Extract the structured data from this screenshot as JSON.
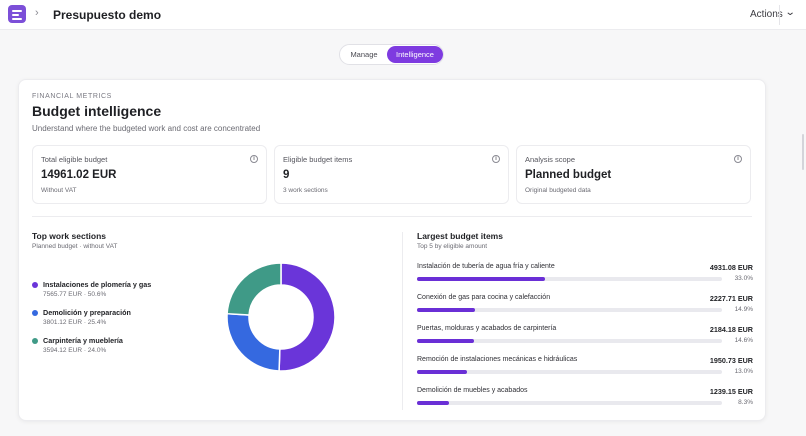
{
  "header": {
    "title": "Presupuesto demo",
    "actions_label": "Actions",
    "icons": {
      "logo": "app-logo-icon",
      "breadcrumb": "chevron-right-icon",
      "actions": "chevron-down-icon"
    }
  },
  "tabs": [
    {
      "label": "Manage",
      "active": false
    },
    {
      "label": "Intelligence",
      "active": true
    }
  ],
  "panel": {
    "eyebrow": "FINANCIAL METRICS",
    "title": "Budget intelligence",
    "subtitle": "Understand where the budgeted work and cost are concentrated"
  },
  "metrics": [
    {
      "label": "Total eligible budget",
      "value": "14961.02 EUR",
      "note": "Without VAT",
      "icon": "info-icon"
    },
    {
      "label": "Eligible budget items",
      "value": "9",
      "note": "3 work sections",
      "icon": "info-icon"
    },
    {
      "label": "Analysis scope",
      "value": "Planned budget",
      "note": "Original budgeted data",
      "icon": "info-icon"
    }
  ],
  "sections": {
    "title": "Top work sections",
    "subtitle": "Planned budget · without VAT",
    "items": [
      {
        "name": "Instalaciones de plomería y gas",
        "detail": "7565.77 EUR · 50.6%",
        "value": 7565.77,
        "share": 50.6,
        "color": "#6a35d9"
      },
      {
        "name": "Demolición y preparación",
        "detail": "3801.12 EUR · 25.4%",
        "value": 3801.12,
        "share": 25.4,
        "color": "#3569e0"
      },
      {
        "name": "Carpintería y mueblería",
        "detail": "3594.12 EUR · 24.0%",
        "value": 3594.12,
        "share": 24.0,
        "color": "#3f9a87"
      }
    ]
  },
  "largest": {
    "title": "Largest budget items",
    "subtitle": "Top 5 by eligible amount",
    "items": [
      {
        "name": "Instalación de tubería de agua fría y caliente",
        "amount": "4931.08 EUR",
        "pct": "33.0%",
        "share": 0.33
      },
      {
        "name": "Conexión de gas para cocina y calefacción",
        "amount": "2227.71 EUR",
        "pct": "14.9%",
        "share": 0.149
      },
      {
        "name": "Puertas, molduras y acabados de carpintería",
        "amount": "2184.18 EUR",
        "pct": "14.6%",
        "share": 0.146
      },
      {
        "name": "Remoción de instalaciones mecánicas e hidráulicas",
        "amount": "1950.73 EUR",
        "pct": "13.0%",
        "share": 0.13
      },
      {
        "name": "Demolición de muebles y acabados",
        "amount": "1239.15 EUR",
        "pct": "8.3%",
        "share": 0.083
      }
    ]
  },
  "chart_data": {
    "type": "pie",
    "categories": [
      "Instalaciones de plomería y gas",
      "Demolición y preparación",
      "Carpintería y mueblería"
    ],
    "values": [
      7565.77,
      3801.12,
      3594.12
    ],
    "colors": [
      "#6a35d9",
      "#3569e0",
      "#3f9a87"
    ],
    "title": "Top work sections",
    "subtitle": "Planned budget · without VAT",
    "donut": true
  }
}
